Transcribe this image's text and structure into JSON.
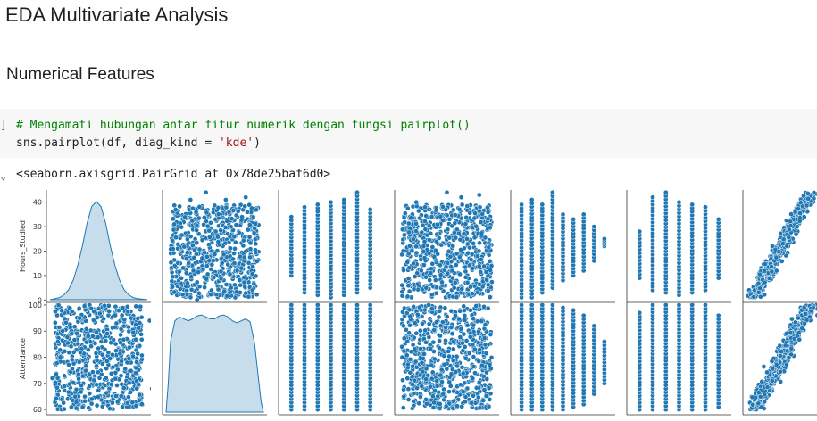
{
  "page": {
    "title": "EDA Multivariate Analysis",
    "section": "Numerical Features"
  },
  "code_cell": {
    "bracket": "]",
    "comment": "# Mengamati hubungan antar fitur numerik dengan fungsi pairplot()",
    "code_prefix": "sns.pairplot(df, diag_kind = ",
    "code_string": "'kde'",
    "code_suffix": ")"
  },
  "output": {
    "toggle_icon": "chevron-down-icon",
    "text": "<seaborn.axisgrid.PairGrid at 0x78de25baf6d0>"
  },
  "chart_data": {
    "type": "scatter",
    "kind": "pairplot",
    "diag_kind": "kde",
    "point_color": "#1f77b4",
    "rows": [
      {
        "ylabel": "Hours_Studied",
        "ylim": [
          -1,
          45
        ],
        "yticks": [
          0,
          10,
          20,
          30,
          40
        ]
      },
      {
        "ylabel": "Attendance",
        "ylim": [
          58,
          101
        ],
        "yticks": [
          60,
          70,
          80,
          90,
          100
        ]
      }
    ],
    "panels": [
      {
        "row": 0,
        "col": 0,
        "kind": "kde",
        "x": [
          1,
          3,
          5,
          7,
          9,
          11,
          13,
          15,
          17,
          19,
          21,
          23,
          25,
          27,
          29,
          31,
          33,
          35,
          37,
          39,
          41,
          43
        ],
        "density": [
          0.0,
          0.01,
          0.02,
          0.05,
          0.1,
          0.2,
          0.35,
          0.55,
          0.78,
          0.95,
          1.0,
          0.95,
          0.78,
          0.55,
          0.35,
          0.2,
          0.1,
          0.05,
          0.02,
          0.01,
          0.005,
          0.0
        ]
      },
      {
        "row": 0,
        "col": 1,
        "kind": "scatter",
        "shape": "uniform-block",
        "x_range": [
          60,
          100
        ],
        "y_range": [
          1,
          39
        ],
        "outliers": [
          [
            76,
            44
          ],
          [
            94,
            42
          ],
          [
            85,
            41
          ],
          [
            69,
            41
          ],
          [
            72,
            0
          ]
        ]
      },
      {
        "row": 0,
        "col": 2,
        "kind": "scatter",
        "shape": "columns",
        "x_values": [
          4,
          5,
          6,
          7,
          8,
          9,
          10
        ],
        "y_ranges": [
          [
            10,
            34
          ],
          [
            3,
            38
          ],
          [
            2,
            39
          ],
          [
            1,
            40
          ],
          [
            2,
            41
          ],
          [
            3,
            44
          ],
          [
            5,
            37
          ]
        ]
      },
      {
        "row": 0,
        "col": 3,
        "kind": "scatter",
        "shape": "uniform-block",
        "x_range": [
          50,
          100
        ],
        "y_range": [
          1,
          39
        ],
        "outliers": [
          [
            75,
            44
          ],
          [
            93,
            43
          ],
          [
            58,
            40
          ],
          [
            83,
            42
          ]
        ]
      },
      {
        "row": 0,
        "col": 4,
        "kind": "scatter",
        "shape": "columns",
        "x_values": [
          0,
          1,
          2,
          3,
          4,
          5,
          6,
          7,
          8
        ],
        "y_ranges": [
          [
            1,
            39
          ],
          [
            1,
            41
          ],
          [
            3,
            39
          ],
          [
            5,
            44
          ],
          [
            8,
            35
          ],
          [
            10,
            33
          ],
          [
            12,
            35
          ],
          [
            16,
            30
          ],
          [
            22,
            25
          ]
        ]
      },
      {
        "row": 0,
        "col": 5,
        "kind": "scatter",
        "shape": "columns",
        "x_values": [
          0,
          1,
          2,
          3,
          4,
          5,
          6
        ],
        "y_ranges": [
          [
            9,
            28
          ],
          [
            4,
            42
          ],
          [
            3,
            44
          ],
          [
            2,
            40
          ],
          [
            3,
            39
          ],
          [
            4,
            38
          ],
          [
            9,
            33
          ]
        ]
      },
      {
        "row": 0,
        "col": 6,
        "kind": "scatter",
        "shape": "diagonal-band",
        "x_range": [
          55,
          78
        ],
        "y_range": [
          1,
          44
        ]
      },
      {
        "row": 1,
        "col": 0,
        "kind": "scatter",
        "shape": "uniform-block",
        "x_range": [
          1,
          39
        ],
        "y_range": [
          60,
          100
        ],
        "outliers": [
          [
            44,
            76
          ],
          [
            42,
            94
          ],
          [
            0,
            72
          ],
          [
            43,
            68
          ]
        ]
      },
      {
        "row": 1,
        "col": 1,
        "kind": "kde",
        "x": [
          58,
          59,
          60,
          62,
          64,
          66,
          68,
          70,
          72,
          74,
          76,
          78,
          80,
          82,
          84,
          86,
          88,
          90,
          92,
          94,
          96,
          98,
          100,
          101,
          102
        ],
        "density": [
          0.0,
          0.3,
          0.72,
          0.93,
          0.97,
          0.95,
          0.93,
          0.95,
          0.98,
          0.99,
          0.97,
          0.95,
          0.95,
          0.98,
          0.99,
          0.97,
          0.93,
          0.91,
          0.93,
          0.95,
          0.92,
          0.7,
          0.3,
          0.1,
          0.0
        ]
      },
      {
        "row": 1,
        "col": 2,
        "kind": "scatter",
        "shape": "columns",
        "x_values": [
          4,
          5,
          6,
          7,
          8,
          9,
          10
        ],
        "y_ranges": [
          [
            60,
            100
          ],
          [
            60,
            100
          ],
          [
            60,
            100
          ],
          [
            60,
            100
          ],
          [
            60,
            100
          ],
          [
            60,
            100
          ],
          [
            60,
            100
          ]
        ]
      },
      {
        "row": 1,
        "col": 3,
        "kind": "scatter",
        "shape": "uniform-block",
        "x_range": [
          50,
          100
        ],
        "y_range": [
          60,
          100
        ]
      },
      {
        "row": 1,
        "col": 4,
        "kind": "scatter",
        "shape": "columns",
        "x_values": [
          0,
          1,
          2,
          3,
          4,
          5,
          6,
          7,
          8
        ],
        "y_ranges": [
          [
            60,
            100
          ],
          [
            60,
            100
          ],
          [
            60,
            100
          ],
          [
            60,
            100
          ],
          [
            60,
            99
          ],
          [
            61,
            98
          ],
          [
            62,
            96
          ],
          [
            66,
            92
          ],
          [
            70,
            86
          ]
        ]
      },
      {
        "row": 1,
        "col": 5,
        "kind": "scatter",
        "shape": "columns",
        "x_values": [
          0,
          1,
          2,
          3,
          4,
          5,
          6
        ],
        "y_ranges": [
          [
            60,
            97
          ],
          [
            60,
            100
          ],
          [
            60,
            100
          ],
          [
            60,
            100
          ],
          [
            60,
            100
          ],
          [
            60,
            100
          ],
          [
            61,
            96
          ]
        ]
      },
      {
        "row": 1,
        "col": 6,
        "kind": "scatter",
        "shape": "diagonal-band",
        "x_range": [
          55,
          76
        ],
        "y_range": [
          60,
          100
        ]
      }
    ]
  }
}
